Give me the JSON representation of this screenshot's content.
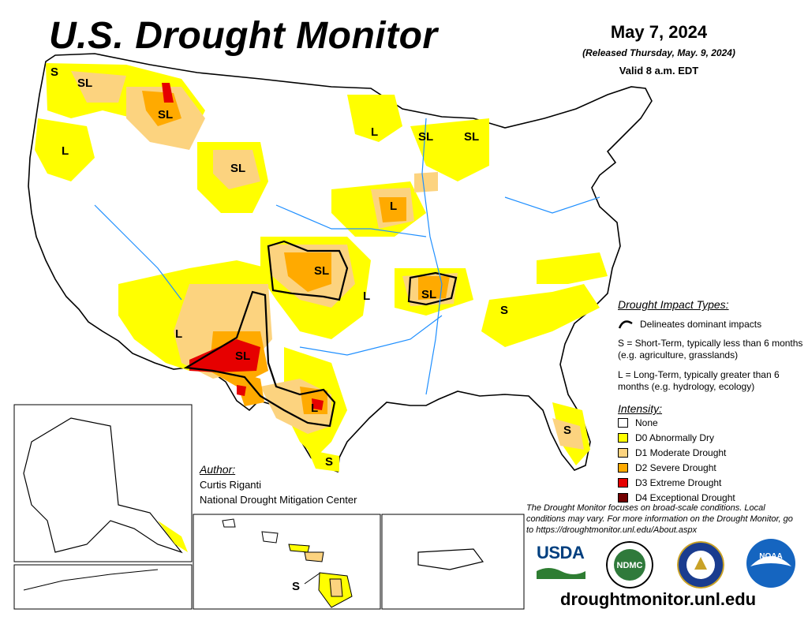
{
  "header": {
    "title": "U.S. Drought Monitor",
    "date": "May 7, 2024",
    "released": "(Released Thursday, May. 9, 2024)",
    "valid": "Valid 8 a.m. EDT"
  },
  "map_labels": {
    "sl_wa": "S",
    "sl_nw": "SL",
    "sl_mt": "SL",
    "l_or": "L",
    "sl_wy": "SL",
    "l_mn": "L",
    "sl_wi": "SL",
    "sl_mi": "SL",
    "l_ia": "L",
    "sl_ks": "SL",
    "l_ok": "L",
    "sl_ar": "SL",
    "l_az": "L",
    "sl_nm": "SL",
    "l_tx": "L",
    "s_tx": "S",
    "s_fl": "S",
    "s_nc": "S",
    "s_hi": "S"
  },
  "impact_legend": {
    "title": "Drought Impact Types:",
    "delineates": "Delineates dominant impacts",
    "s_def": "S = Short-Term, typically less than 6 months (e.g. agriculture, grasslands)",
    "l_def": "L = Long-Term, typically greater than 6 months (e.g. hydrology, ecology)"
  },
  "intensity_legend": {
    "title": "Intensity:",
    "items": [
      {
        "label": "None",
        "color": "#ffffff"
      },
      {
        "label": "D0 Abnormally Dry",
        "color": "#ffff00"
      },
      {
        "label": "D1 Moderate Drought",
        "color": "#fcd37f"
      },
      {
        "label": "D2 Severe Drought",
        "color": "#ffaa00"
      },
      {
        "label": "D3 Extreme Drought",
        "color": "#e60000"
      },
      {
        "label": "D4 Exceptional Drought",
        "color": "#730000"
      }
    ]
  },
  "author": {
    "title": "Author:",
    "name": "Curtis Riganti",
    "org": "National Drought Mitigation Center"
  },
  "disclaimer": "The Drought Monitor focuses on broad-scale conditions. Local conditions may vary. For more information on the Drought Monitor, go to https://droughtmonitor.unl.edu/About.aspx",
  "logos": {
    "usda": "USDA",
    "ndmc": "NDMC",
    "noaa": "NOAA"
  },
  "url": "droughtmonitor.unl.edu"
}
